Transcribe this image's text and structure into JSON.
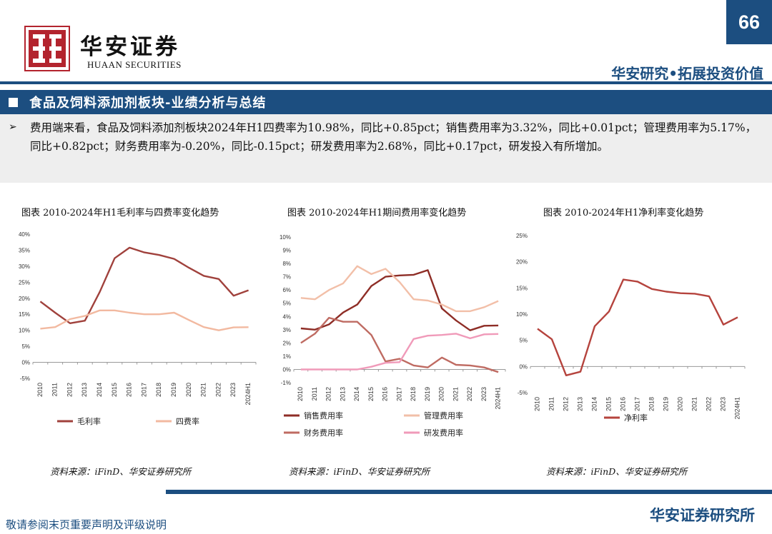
{
  "header": {
    "logo_cn": "华安证券",
    "logo_en": "HUAAN SECURITIES",
    "page_number": "66",
    "tagline": "华安研究•拓展投资价值",
    "brand_color": "#1c4e80"
  },
  "section": {
    "title": "食品及饲料添加剂板块-业绩分析与总结"
  },
  "summary": {
    "bullet": "➢",
    "text": "费用端来看，食品及饲料添加剂板块2024年H1四费率为10.98%，同比+0.85pct；销售费用率为3.32%，同比+0.01pct；管理费用率为5.17%，同比+0.82pct；财务费用率为-0.20%，同比-0.15pct；研发费用率为2.68%，同比+0.17pct，研发投入有所增加。"
  },
  "charts": {
    "left": {
      "title": "图表 2010-2024年H1毛利率与四费率变化趋势",
      "source": "资料来源：iFinD、华安证券研究所"
    },
    "mid": {
      "title": "图表 2010-2024年H1期间费用率变化趋势",
      "source": "资料来源：iFinD、华安证券研究所"
    },
    "right": {
      "title": "图表 2010-2024年H1净利率变化趋势",
      "source": "资料来源：iFinD、华安证券研究所"
    }
  },
  "chart_data": [
    {
      "type": "line",
      "title": "图表 2010-2024年H1毛利率与四费率变化趋势",
      "categories": [
        "2010",
        "2011",
        "2012",
        "2013",
        "2014",
        "2015",
        "2016",
        "2017",
        "2018",
        "2019",
        "2020",
        "2021",
        "2022",
        "2023",
        "2024H1"
      ],
      "ylim": [
        -5,
        40
      ],
      "yticks": [
        "-5%",
        "0%",
        "5%",
        "10%",
        "15%",
        "20%",
        "25%",
        "30%",
        "35%",
        "40%"
      ],
      "legend_position": "bottom",
      "series": [
        {
          "name": "毛利率",
          "color": "#a0413c",
          "values": [
            19,
            15.5,
            12.2,
            13,
            22,
            32.5,
            35.8,
            34.3,
            33.5,
            32.3,
            29.5,
            27,
            26,
            20.8,
            22.5
          ]
        },
        {
          "name": "四费率",
          "color": "#f2b9a0",
          "values": [
            10.5,
            11,
            13.5,
            14.5,
            16.2,
            16.2,
            15.5,
            15,
            15,
            15.5,
            13.2,
            11,
            10,
            10.9,
            10.98
          ]
        }
      ]
    },
    {
      "type": "line",
      "title": "图表 2010-2024年H1期间费用率变化趋势",
      "categories": [
        "2010",
        "2011",
        "2012",
        "2013",
        "2014",
        "2015",
        "2016",
        "2017",
        "2018",
        "2019",
        "2020",
        "2021",
        "2022",
        "2023",
        "2024H1"
      ],
      "ylim": [
        -1,
        10
      ],
      "yticks": [
        "-1%",
        "0%",
        "1%",
        "2%",
        "3%",
        "4%",
        "5%",
        "6%",
        "7%",
        "8%",
        "9%",
        "10%"
      ],
      "legend_position": "bottom",
      "series": [
        {
          "name": "销售费用率",
          "color": "#8e2d26",
          "values": [
            3.1,
            3.0,
            3.4,
            4.3,
            4.9,
            6.3,
            7.0,
            7.1,
            7.15,
            7.5,
            4.6,
            3.7,
            2.95,
            3.3,
            3.32
          ]
        },
        {
          "name": "管理费用率",
          "color": "#f2bfa8",
          "values": [
            5.4,
            5.3,
            6.0,
            6.5,
            7.8,
            7.2,
            7.6,
            6.6,
            5.3,
            5.2,
            4.9,
            4.4,
            4.4,
            4.7,
            5.17
          ]
        },
        {
          "name": "财务费用率",
          "color": "#bf6b62",
          "values": [
            2.0,
            2.7,
            3.9,
            3.6,
            3.6,
            2.6,
            0.6,
            0.8,
            0.3,
            0.15,
            0.9,
            0.35,
            0.3,
            0.15,
            -0.2
          ]
        },
        {
          "name": "研发费用率",
          "color": "#f09ab9",
          "values": [
            0,
            0,
            0,
            0,
            0,
            0.2,
            0.5,
            0.55,
            2.3,
            2.55,
            2.6,
            2.7,
            2.35,
            2.65,
            2.68
          ]
        }
      ]
    },
    {
      "type": "line",
      "title": "图表 2010-2024年H1净利率变化趋势",
      "categories": [
        "2010",
        "2011",
        "2012",
        "2013",
        "2014",
        "2015",
        "2016",
        "2017",
        "2018",
        "2019",
        "2020",
        "2021",
        "2022",
        "2023",
        "2024H1"
      ],
      "ylim": [
        -5,
        25
      ],
      "yticks": [
        "-5%",
        "0%",
        "5%",
        "10%",
        "15%",
        "20%",
        "25%"
      ],
      "legend_position": "bottom",
      "series": [
        {
          "name": "净利率",
          "color": "#b5433d",
          "values": [
            7.2,
            5.2,
            -1.7,
            -1.0,
            7.7,
            10.5,
            16.6,
            16.2,
            14.8,
            14.3,
            14.0,
            13.9,
            13.4,
            8.0,
            9.4
          ]
        }
      ]
    }
  ],
  "footer": {
    "disclaimer": "敬请参阅末页重要声明及评级说明",
    "company": "华安证券研究所"
  }
}
